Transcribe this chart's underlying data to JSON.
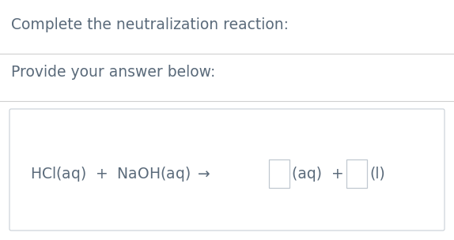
{
  "bg_color": "#ffffff",
  "title_text": "Complete the neutralization reaction:",
  "subtitle_text": "Provide your answer below:",
  "text_color": "#5a6a7a",
  "line_color": "#d0d0d0",
  "box_border_color": "#b0b8c0",
  "title_fontsize": 13.5,
  "subtitle_fontsize": 13.5,
  "eq_fontsize": 13.5,
  "eq_box_border": "#c8cfd6",
  "input_box_color": "#c0c8d0"
}
